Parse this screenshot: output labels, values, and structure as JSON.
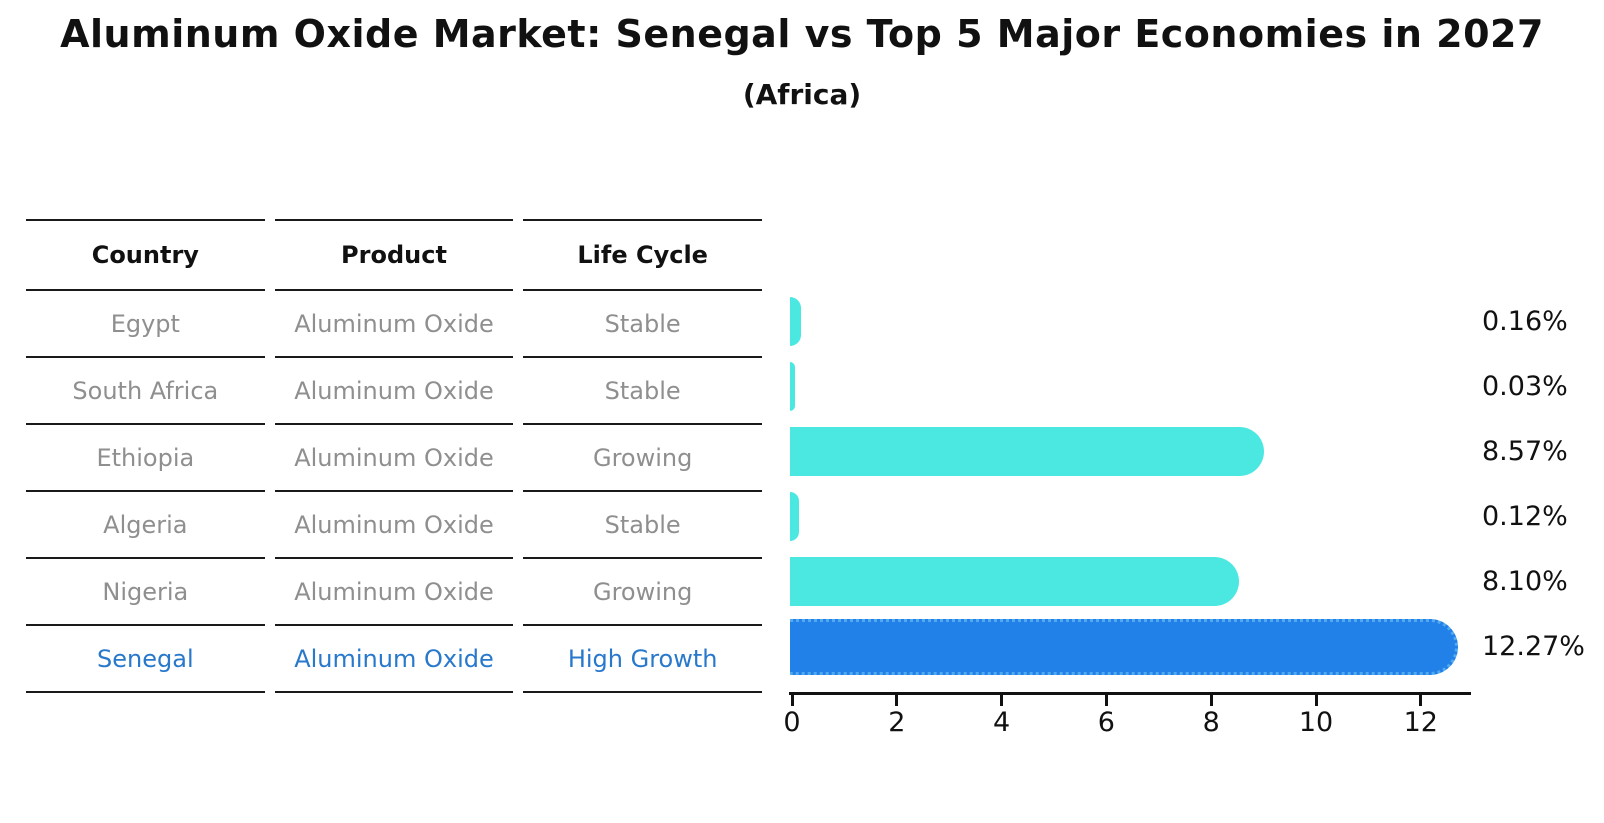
{
  "title": "Aluminum Oxide Market: Senegal vs Top 5 Major Economies in 2027",
  "subtitle": "(Africa)",
  "table": {
    "headers": [
      "Country",
      "Product",
      "Life Cycle"
    ],
    "rows": [
      {
        "country": "Egypt",
        "product": "Aluminum Oxide",
        "life_cycle": "Stable",
        "highlight": false
      },
      {
        "country": "South Africa",
        "product": "Aluminum Oxide",
        "life_cycle": "Stable",
        "highlight": false
      },
      {
        "country": "Ethiopia",
        "product": "Aluminum Oxide",
        "life_cycle": "Growing",
        "highlight": false
      },
      {
        "country": "Algeria",
        "product": "Aluminum Oxide",
        "life_cycle": "Stable",
        "highlight": false
      },
      {
        "country": "Nigeria",
        "product": "Aluminum Oxide",
        "life_cycle": "Growing",
        "highlight": false
      },
      {
        "country": "Senegal",
        "product": "Aluminum Oxide",
        "life_cycle": "High Growth",
        "highlight": true
      }
    ]
  },
  "chart_data": {
    "type": "bar",
    "orientation": "horizontal",
    "title": "Aluminum Oxide Market: Senegal vs Top 5 Major Economies in 2027",
    "subtitle": "(Africa)",
    "categories": [
      "Egypt",
      "South Africa",
      "Ethiopia",
      "Algeria",
      "Nigeria",
      "Senegal"
    ],
    "values": [
      0.16,
      0.03,
      8.57,
      0.12,
      8.1,
      12.27
    ],
    "value_labels": [
      "0.16%",
      "0.03%",
      "8.57%",
      "0.12%",
      "8.10%",
      "12.27%"
    ],
    "x_ticks": [
      0,
      2,
      4,
      6,
      8,
      10,
      12
    ],
    "xlim": [
      0,
      13
    ],
    "grid": false,
    "legend": "none",
    "highlight_index": 5,
    "colors": {
      "bar_default": "#4BE8E2",
      "bar_highlight": "#2181E8",
      "bar_highlight_edge": "#53A9F0",
      "highlight_text": "#2878CB",
      "table_text": "#8f8f8f",
      "header_text": "#111111",
      "axis": "#111111"
    }
  }
}
